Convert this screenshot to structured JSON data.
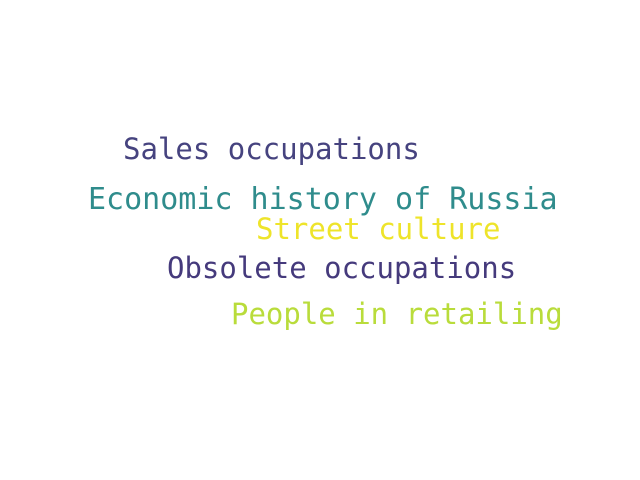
{
  "words": [
    {
      "text": "Sales occupations",
      "color": "#46437f"
    },
    {
      "text": "Economic history of Russia",
      "color": "#2f8c8c"
    },
    {
      "text": "Street culture",
      "color": "#eee42a"
    },
    {
      "text": "Obsolete occupations",
      "color": "#453a7c"
    },
    {
      "text": "People in retailing",
      "color": "#b9dc3b"
    }
  ]
}
